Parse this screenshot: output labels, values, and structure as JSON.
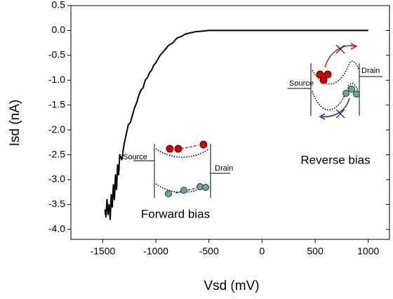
{
  "chart_data": {
    "type": "line",
    "xlabel": "Vsd (mV)",
    "ylabel": "Isd (nA)",
    "x": [
      -1480,
      -1470,
      -1460,
      -1450,
      -1440,
      -1430,
      -1420,
      -1410,
      -1400,
      -1390,
      -1380,
      -1370,
      -1360,
      -1350,
      -1340,
      -1320,
      -1300,
      -1280,
      -1260,
      -1240,
      -1220,
      -1200,
      -1180,
      -1160,
      -1140,
      -1120,
      -1100,
      -1080,
      -1060,
      -1040,
      -1020,
      -1000,
      -960,
      -920,
      -880,
      -840,
      -800,
      -760,
      -720,
      -680,
      -640,
      -600,
      -550,
      -500,
      -400,
      -200,
      0,
      200,
      400,
      600,
      800,
      1000
    ],
    "series": [
      {
        "color": "#000000",
        "values": [
          -3.6,
          -3.75,
          -3.4,
          -3.7,
          -3.5,
          -3.8,
          -3.3,
          -3.55,
          -3.1,
          -3.4,
          -2.9,
          -3.2,
          -2.7,
          -2.9,
          -2.5,
          -2.6,
          -2.3,
          -2.1,
          -1.9,
          -1.85,
          -1.7,
          -1.55,
          -1.45,
          -1.3,
          -1.2,
          -1.15,
          -1.0,
          -0.95,
          -0.85,
          -0.8,
          -0.7,
          -0.65,
          -0.5,
          -0.4,
          -0.3,
          -0.25,
          -0.15,
          -0.12,
          -0.07,
          -0.05,
          -0.03,
          -0.02,
          -0.01,
          0,
          0,
          0,
          0,
          0,
          0,
          0,
          0,
          0
        ]
      }
    ],
    "xlim": [
      -1800,
      1200
    ],
    "xticks": [
      -1500,
      -1000,
      -500,
      0,
      500,
      1000
    ],
    "ylim": [
      -4.2,
      0.5
    ],
    "yticks": [
      0.5,
      {
        "value": 0,
        "label": "0.0"
      },
      -0.5,
      {
        "value": -1,
        "label": "-1.0"
      },
      -1.5,
      {
        "value": -2,
        "label": "-2.0"
      },
      -2.5,
      {
        "value": -3,
        "label": "-3.0"
      },
      -3.5,
      {
        "value": -4,
        "label": "-4.0"
      }
    ],
    "annotations": {
      "forward_source": "Source",
      "forward_drain": "Drain",
      "forward_label": "Forward bias",
      "reverse_source": "Source",
      "reverse_drain": "Drain",
      "reverse_label": "Reverse bias"
    }
  }
}
